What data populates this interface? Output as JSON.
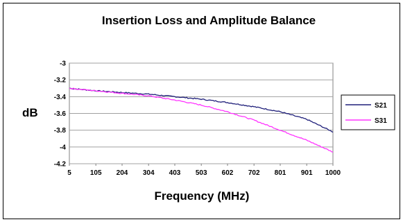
{
  "chart_data": {
    "type": "line",
    "title": "Insertion Loss and Amplitude Balance",
    "xlabel": "Frequency (MHz)",
    "ylabel": "dB",
    "x_tick_labels": [
      "5",
      "105",
      "204",
      "304",
      "403",
      "503",
      "602",
      "702",
      "801",
      "901",
      "1000"
    ],
    "y_tick_labels": [
      "-3",
      "-3.2",
      "-3.4",
      "-3.6",
      "-3.8",
      "-4",
      "-4.2"
    ],
    "xlim": [
      5,
      1000
    ],
    "ylim": [
      -4.2,
      -3
    ],
    "y_tick_values": [
      -3,
      -3.2,
      -3.4,
      -3.6,
      -3.8,
      -4,
      -4.2
    ],
    "grid": "horizontal",
    "legend": "right",
    "x": [
      5,
      105,
      204,
      304,
      403,
      503,
      602,
      702,
      801,
      901,
      1000
    ],
    "series": [
      {
        "name": "S21",
        "color": "#1f1f7a",
        "values": [
          -3.3,
          -3.33,
          -3.35,
          -3.37,
          -3.4,
          -3.43,
          -3.47,
          -3.52,
          -3.58,
          -3.67,
          -3.82
        ]
      },
      {
        "name": "S31",
        "color": "#ff33ff",
        "values": [
          -3.3,
          -3.33,
          -3.36,
          -3.39,
          -3.44,
          -3.5,
          -3.58,
          -3.68,
          -3.8,
          -3.92,
          -4.06
        ]
      }
    ]
  }
}
